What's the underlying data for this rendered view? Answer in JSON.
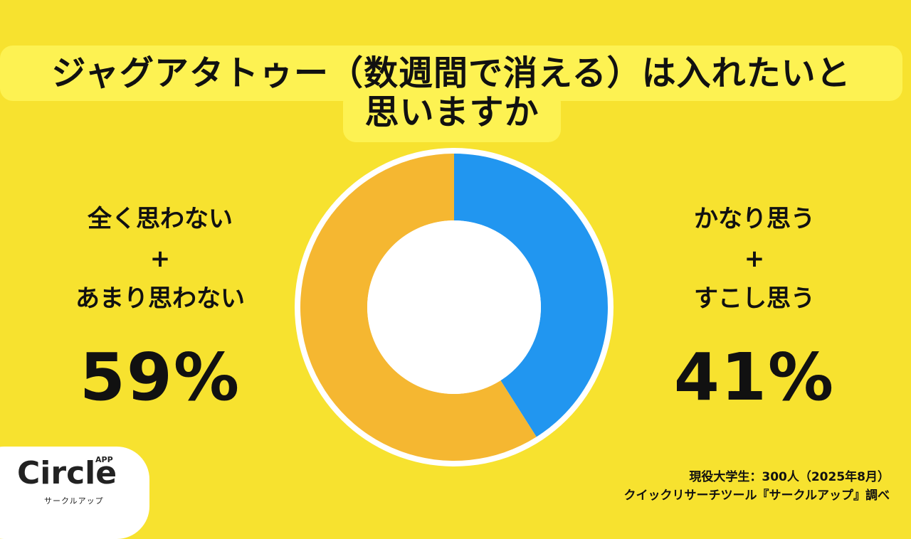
{
  "title": {
    "line1": "ジャグアタトゥー（数週間で消える）は入れたいと",
    "line2": "思いますか"
  },
  "left": {
    "label1": "全く思わない",
    "plus": "+",
    "label2": "あまり思わない",
    "percent": "59%"
  },
  "right": {
    "label1": "かなり思う",
    "plus": "+",
    "label2": "すこし思う",
    "percent": "41%"
  },
  "logo": {
    "word": "Circle",
    "app": "APP",
    "sub": "サークルアップ"
  },
  "source": {
    "line1": "現役大学生：300人（2025年8月）",
    "line2": "クイックリサーチツール『サークルアップ』調べ"
  },
  "colors": {
    "background": "#f7e22f",
    "title_box": "#fdf252",
    "series_orange": "#f5b731",
    "series_blue": "#2196f0"
  },
  "chart_data": {
    "type": "pie",
    "categories": [
      "全く思わない+あまり思わない",
      "かなり思う+すこし思う"
    ],
    "values": [
      59,
      41
    ],
    "colors": [
      "#f5b731",
      "#2196f0"
    ],
    "start": "top",
    "direction": "clockwise-from-blue"
  }
}
